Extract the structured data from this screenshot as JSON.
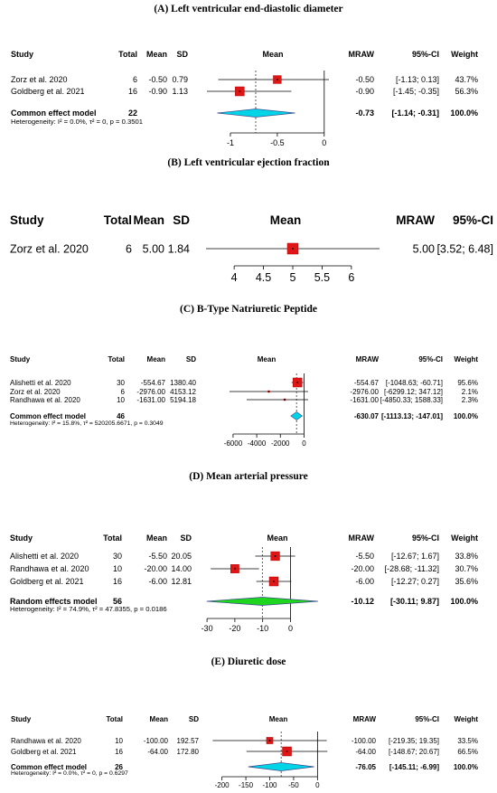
{
  "chart_data": [
    {
      "type": "forest",
      "panel_title": "(A) Left ventricular end-diastolic diameter",
      "headers": {
        "study": "Study",
        "total": "Total",
        "mean": "Mean",
        "sd": "SD",
        "plot": "Mean",
        "effect": "MRAW",
        "ci": "95%-CI",
        "weight": "Weight"
      },
      "xlim": [
        -1.25,
        0.05
      ],
      "ticks": [
        -1,
        -0.5,
        0
      ],
      "tick_labels": [
        "-1",
        "-0.5",
        "0"
      ],
      "studies": [
        {
          "name": "Zorz et al. 2020",
          "total": "6",
          "mean": "-0.50",
          "sd": "0.79",
          "est": -0.5,
          "lo": -1.13,
          "hi": 0.13,
          "effect": "-0.50",
          "ci": "[-1.13; 0.13]",
          "weight": "43.7%",
          "w": 43.7
        },
        {
          "name": "Goldberg et al. 2021",
          "total": "16",
          "mean": "-0.90",
          "sd": "1.13",
          "est": -0.9,
          "lo": -1.45,
          "hi": -0.35,
          "effect": "-0.90",
          "ci": "[-1.45; -0.35]",
          "weight": "56.3%",
          "w": 56.3
        }
      ],
      "pooled": {
        "name": "Common effect model",
        "total": "22",
        "est": -0.73,
        "lo": -1.14,
        "hi": -0.31,
        "effect": "-0.73",
        "ci": "[-1.14; -0.31]",
        "weight": "100.0%",
        "color": "#00d5e8"
      },
      "heterogeneity": "Heterogeneity: I² = 0.0%, τ² = 0, p = 0.3501"
    },
    {
      "type": "forest",
      "panel_title": "(B) Left ventricular ejection fraction",
      "headers": {
        "study": "Study",
        "total": "Total",
        "mean": "Mean",
        "sd": "SD",
        "plot": "Mean",
        "effect": "MRAW",
        "ci": "95%-CI"
      },
      "xlim": [
        3.52,
        6.48
      ],
      "ticks": [
        4,
        4.5,
        5,
        5.5,
        6
      ],
      "tick_labels": [
        "4",
        "4.5",
        "5",
        "5.5",
        "6"
      ],
      "studies": [
        {
          "name": "Zorz et al. 2020",
          "total": "6",
          "mean": "5.00",
          "sd": "1.84",
          "est": 5.0,
          "lo": 3.52,
          "hi": 6.48,
          "effect": "5.00",
          "ci": "[3.52; 6.48]"
        }
      ]
    },
    {
      "type": "forest",
      "panel_title": "(C) B-Type Natriuretic Peptide",
      "headers": {
        "study": "Study",
        "total": "Total",
        "mean": "Mean",
        "sd": "SD",
        "plot": "Mean",
        "effect": "MRAW",
        "ci": "95%-CI",
        "weight": "Weight"
      },
      "xlim": [
        -6300,
        350
      ],
      "ticks": [
        -6000,
        -4000,
        -2000,
        0
      ],
      "tick_labels": [
        "-6000",
        "-4000",
        "-2000",
        "0"
      ],
      "studies": [
        {
          "name": "Alishetti et al. 2020",
          "total": "30",
          "mean": "-554.67",
          "sd": "1380.40",
          "est": -554.67,
          "lo": -1048.63,
          "hi": -60.71,
          "effect": "-554.67",
          "ci": "[-1048.63; -60.71]",
          "weight": "95.6%",
          "w": 95.6
        },
        {
          "name": "Zorz et al. 2020",
          "total": "6",
          "mean": "-2976.00",
          "sd": "4153.12",
          "est": -2976.0,
          "lo": -6299.12,
          "hi": 347.12,
          "effect": "-2976.00",
          "ci": "[-6299.12; 347.12]",
          "weight": "2.1%",
          "w": 2.1
        },
        {
          "name": "Randhawa et al. 2020",
          "total": "10",
          "mean": "-1631.00",
          "sd": "5194.18",
          "est": -1631.0,
          "lo": -4850.33,
          "hi": 1588.33,
          "effect": "-1631.00",
          "ci": "[-4850.33; 1588.33]",
          "weight": "2.3%",
          "w": 2.3
        }
      ],
      "pooled": {
        "name": "Common effect model",
        "total": "46",
        "est": -630.07,
        "lo": -1113.13,
        "hi": -147.01,
        "effect": "-630.07",
        "ci": "[-1113.13; -147.01]",
        "weight": "100.0%",
        "color": "#00d5e8"
      },
      "heterogeneity": "Heterogeneity: I² = 15.8%, τ² = 520205.6671, p = 0.3049"
    },
    {
      "type": "forest",
      "panel_title": "(D) Mean arterial pressure",
      "headers": {
        "study": "Study",
        "total": "Total",
        "mean": "Mean",
        "sd": "SD",
        "plot": "Mean",
        "effect": "MRAW",
        "ci": "95%-CI",
        "weight": "Weight"
      },
      "xlim": [
        -31,
        9.9
      ],
      "ticks": [
        -30,
        -20,
        -10,
        0
      ],
      "tick_labels": [
        "-30",
        "-20",
        "-10",
        "0"
      ],
      "studies": [
        {
          "name": "Alishetti et al. 2020",
          "total": "30",
          "mean": "-5.50",
          "sd": "20.05",
          "est": -5.5,
          "lo": -12.67,
          "hi": 1.67,
          "effect": "-5.50",
          "ci": "[-12.67; 1.67]",
          "weight": "33.8%",
          "w": 33.8
        },
        {
          "name": "Randhawa et al. 2020",
          "total": "10",
          "mean": "-20.00",
          "sd": "14.00",
          "est": -20.0,
          "lo": -28.68,
          "hi": -11.32,
          "effect": "-20.00",
          "ci": "[-28.68; -11.32]",
          "weight": "30.7%",
          "w": 30.7
        },
        {
          "name": "Goldberg et al. 2021",
          "total": "16",
          "mean": "-6.00",
          "sd": "12.81",
          "est": -6.0,
          "lo": -12.27,
          "hi": 0.27,
          "effect": "-6.00",
          "ci": "[-12.27; 0.27]",
          "weight": "35.6%",
          "w": 35.6
        }
      ],
      "pooled": {
        "name": "Random effects model",
        "total": "56",
        "est": -10.12,
        "lo": -30.11,
        "hi": 9.87,
        "effect": "-10.12",
        "ci": "[-30.11; 9.87]",
        "weight": "100.0%",
        "color": "#1fd61f"
      },
      "heterogeneity": "Heterogeneity: I² = 74.9%, τ² = 47.8355, p = 0.0186"
    },
    {
      "type": "forest",
      "panel_title": "(E) Diuretic dose",
      "headers": {
        "study": "Study",
        "total": "Total",
        "mean": "Mean",
        "sd": "SD",
        "plot": "Mean",
        "effect": "MRAW",
        "ci": "95%-CI",
        "weight": "Weight"
      },
      "xlim": [
        -222,
        22
      ],
      "ticks": [
        -200,
        -150,
        -100,
        -50,
        0
      ],
      "tick_labels": [
        "-200",
        "-150",
        "-100",
        "-50",
        "0"
      ],
      "studies": [
        {
          "name": "Randhawa et al. 2020",
          "total": "10",
          "mean": "-100.00",
          "sd": "192.57",
          "est": -100.0,
          "lo": -219.35,
          "hi": 19.35,
          "effect": "-100.00",
          "ci": "[-219.35; 19.35]",
          "weight": "33.5%",
          "w": 33.5
        },
        {
          "name": "Goldberg et al. 2021",
          "total": "16",
          "mean": "-64.00",
          "sd": "172.80",
          "est": -64.0,
          "lo": -148.67,
          "hi": 20.67,
          "effect": "-64.00",
          "ci": "[-148.67; 20.67]",
          "weight": "66.5%",
          "w": 66.5
        }
      ],
      "pooled": {
        "name": "Common effect model",
        "total": "26",
        "est": -76.05,
        "lo": -145.11,
        "hi": -6.99,
        "effect": "-76.05",
        "ci": "[-145.11; -6.99]",
        "weight": "100.0%",
        "color": "#00d5e8"
      },
      "heterogeneity": "Heterogeneity: I² = 0.0%, τ² = 0, p = 0.6297"
    }
  ]
}
